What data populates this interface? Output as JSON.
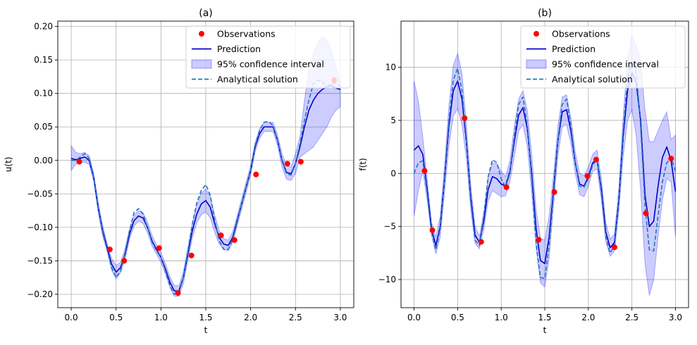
{
  "chart_data": [
    {
      "type": "line",
      "title": "(a)",
      "xlabel": "t",
      "ylabel": "u(t)",
      "xlim": [
        -0.15,
        3.15
      ],
      "ylim": [
        -0.22,
        0.208
      ],
      "xticks": [
        0.0,
        0.5,
        1.0,
        1.5,
        2.0,
        2.5,
        3.0
      ],
      "xtick_labels": [
        "0.0",
        "0.5",
        "1.0",
        "1.5",
        "2.0",
        "2.5",
        "3.0"
      ],
      "yticks": [
        -0.2,
        -0.15,
        -0.1,
        -0.05,
        0.0,
        0.05,
        0.1,
        0.15,
        0.2
      ],
      "ytick_labels": [
        "−0.20",
        "−0.15",
        "−0.10",
        "−0.05",
        "0.00",
        "0.05",
        "0.10",
        "0.15",
        "0.20"
      ],
      "grid": true,
      "legend_position": "top-right",
      "series": [
        {
          "name": "Observations",
          "kind": "scatter",
          "color": "#ff0000",
          "x": [
            0.09,
            0.43,
            0.59,
            0.98,
            1.19,
            1.34,
            1.67,
            1.82,
            2.06,
            2.41,
            2.56,
            2.93
          ],
          "y": [
            -0.002,
            -0.133,
            -0.15,
            -0.131,
            -0.198,
            -0.142,
            -0.112,
            -0.119,
            -0.021,
            -0.005,
            -0.002,
            0.12
          ]
        },
        {
          "name": "Prediction",
          "kind": "line",
          "color": "#0000cc",
          "x": [
            0.0,
            0.05,
            0.1,
            0.15,
            0.2,
            0.25,
            0.3,
            0.35,
            0.4,
            0.45,
            0.5,
            0.55,
            0.6,
            0.65,
            0.7,
            0.75,
            0.8,
            0.85,
            0.9,
            0.95,
            1.0,
            1.05,
            1.1,
            1.15,
            1.2,
            1.25,
            1.3,
            1.35,
            1.4,
            1.45,
            1.5,
            1.55,
            1.6,
            1.65,
            1.7,
            1.75,
            1.8,
            1.85,
            1.9,
            1.95,
            2.0,
            2.05,
            2.1,
            2.15,
            2.2,
            2.25,
            2.3,
            2.35,
            2.4,
            2.45,
            2.5,
            2.55,
            2.6,
            2.65,
            2.7,
            2.75,
            2.8,
            2.85,
            2.9,
            2.95,
            3.0
          ],
          "y": [
            0.003,
            0.001,
            0.003,
            0.005,
            0.0,
            -0.025,
            -0.07,
            -0.105,
            -0.13,
            -0.155,
            -0.167,
            -0.16,
            -0.14,
            -0.11,
            -0.09,
            -0.083,
            -0.086,
            -0.1,
            -0.12,
            -0.133,
            -0.145,
            -0.162,
            -0.182,
            -0.195,
            -0.195,
            -0.175,
            -0.14,
            -0.105,
            -0.08,
            -0.065,
            -0.06,
            -0.07,
            -0.095,
            -0.115,
            -0.125,
            -0.127,
            -0.115,
            -0.09,
            -0.065,
            -0.04,
            -0.015,
            0.02,
            0.04,
            0.05,
            0.05,
            0.05,
            0.03,
            0.0,
            -0.018,
            -0.02,
            -0.005,
            0.02,
            0.05,
            0.075,
            0.09,
            0.1,
            0.106,
            0.11,
            0.112,
            0.108,
            0.106
          ]
        },
        {
          "name": "95% confidence interval",
          "kind": "band",
          "color": "#0000ff",
          "x": [
            0.0,
            0.05,
            0.1,
            0.15,
            0.2,
            0.25,
            0.3,
            0.35,
            0.4,
            0.45,
            0.5,
            0.55,
            0.6,
            0.65,
            0.7,
            0.75,
            0.8,
            0.85,
            0.9,
            0.95,
            1.0,
            1.05,
            1.1,
            1.15,
            1.2,
            1.25,
            1.3,
            1.35,
            1.4,
            1.45,
            1.5,
            1.55,
            1.6,
            1.65,
            1.7,
            1.75,
            1.8,
            1.85,
            1.9,
            1.95,
            2.0,
            2.05,
            2.1,
            2.15,
            2.2,
            2.25,
            2.3,
            2.35,
            2.4,
            2.45,
            2.5,
            2.55,
            2.6,
            2.65,
            2.7,
            2.75,
            2.8,
            2.85,
            2.9,
            2.95,
            3.0
          ],
          "lower": [
            -0.015,
            -0.006,
            -0.002,
            -0.003,
            -0.006,
            -0.031,
            -0.078,
            -0.113,
            -0.136,
            -0.164,
            -0.177,
            -0.168,
            -0.148,
            -0.118,
            -0.098,
            -0.091,
            -0.094,
            -0.108,
            -0.128,
            -0.14,
            -0.152,
            -0.17,
            -0.19,
            -0.203,
            -0.203,
            -0.184,
            -0.15,
            -0.116,
            -0.093,
            -0.081,
            -0.077,
            -0.086,
            -0.108,
            -0.125,
            -0.133,
            -0.135,
            -0.123,
            -0.098,
            -0.073,
            -0.048,
            -0.022,
            0.013,
            0.033,
            0.043,
            0.043,
            0.043,
            0.022,
            -0.01,
            -0.028,
            -0.03,
            -0.02,
            0.005,
            0.01,
            0.015,
            0.02,
            0.03,
            0.04,
            0.05,
            0.065,
            0.075,
            0.08
          ],
          "upper": [
            0.022,
            0.012,
            0.01,
            0.012,
            0.007,
            -0.019,
            -0.062,
            -0.097,
            -0.124,
            -0.146,
            -0.157,
            -0.152,
            -0.132,
            -0.102,
            -0.082,
            -0.075,
            -0.078,
            -0.092,
            -0.112,
            -0.126,
            -0.138,
            -0.154,
            -0.174,
            -0.187,
            -0.187,
            -0.166,
            -0.13,
            -0.094,
            -0.067,
            -0.049,
            -0.043,
            -0.054,
            -0.082,
            -0.105,
            -0.117,
            -0.119,
            -0.107,
            -0.082,
            -0.057,
            -0.032,
            -0.008,
            0.027,
            0.047,
            0.057,
            0.057,
            0.057,
            0.038,
            0.01,
            -0.008,
            -0.01,
            0.01,
            0.035,
            0.09,
            0.135,
            0.16,
            0.175,
            0.185,
            0.18,
            0.165,
            0.14,
            0.115
          ]
        },
        {
          "name": "Analytical solution",
          "kind": "line",
          "dash": true,
          "color": "#1f77b4",
          "x": [
            0.0,
            0.05,
            0.1,
            0.15,
            0.2,
            0.25,
            0.3,
            0.35,
            0.4,
            0.45,
            0.5,
            0.55,
            0.6,
            0.65,
            0.7,
            0.75,
            0.8,
            0.85,
            0.9,
            0.95,
            1.0,
            1.05,
            1.1,
            1.15,
            1.2,
            1.25,
            1.3,
            1.35,
            1.4,
            1.45,
            1.5,
            1.55,
            1.6,
            1.65,
            1.7,
            1.75,
            1.8,
            1.85,
            1.9,
            1.95,
            2.0,
            2.05,
            2.1,
            2.15,
            2.2,
            2.25,
            2.3,
            2.35,
            2.4,
            2.45,
            2.5,
            2.55,
            2.6,
            2.65,
            2.7,
            2.75,
            2.8,
            2.85,
            2.9,
            2.95,
            3.0
          ],
          "y": [
            0.0,
            0.0,
            0.005,
            0.01,
            0.003,
            -0.025,
            -0.07,
            -0.107,
            -0.133,
            -0.16,
            -0.175,
            -0.165,
            -0.138,
            -0.105,
            -0.078,
            -0.072,
            -0.08,
            -0.1,
            -0.122,
            -0.135,
            -0.145,
            -0.165,
            -0.187,
            -0.2,
            -0.198,
            -0.175,
            -0.137,
            -0.095,
            -0.063,
            -0.045,
            -0.036,
            -0.052,
            -0.09,
            -0.12,
            -0.133,
            -0.133,
            -0.118,
            -0.092,
            -0.065,
            -0.04,
            -0.015,
            0.022,
            0.045,
            0.057,
            0.058,
            0.052,
            0.03,
            0.0,
            -0.02,
            -0.022,
            -0.005,
            0.025,
            0.06,
            0.09,
            0.115,
            0.12,
            0.117,
            0.11,
            0.115,
            0.115,
            0.11
          ]
        }
      ]
    },
    {
      "type": "line",
      "title": "(b)",
      "xlabel": "t",
      "ylabel": "f(t)",
      "xlim": [
        -0.15,
        3.15
      ],
      "ylim": [
        -12.65,
        14.35
      ],
      "xticks": [
        0.0,
        0.5,
        1.0,
        1.5,
        2.0,
        2.5,
        3.0
      ],
      "xtick_labels": [
        "0.0",
        "0.5",
        "1.0",
        "1.5",
        "2.0",
        "2.5",
        "3.0"
      ],
      "yticks": [
        -10,
        -5,
        0,
        5,
        10
      ],
      "ytick_labels": [
        "−10",
        "−5",
        "0",
        "5",
        "10"
      ],
      "grid": true,
      "legend_position": "top-right",
      "series": [
        {
          "name": "Observations",
          "kind": "scatter",
          "color": "#ff0000",
          "x": [
            0.12,
            0.21,
            0.58,
            0.77,
            1.06,
            1.43,
            1.61,
            1.99,
            2.09,
            2.3,
            2.66,
            2.95
          ],
          "y": [
            0.25,
            -5.35,
            5.2,
            -6.45,
            -1.3,
            -6.25,
            -1.75,
            -0.25,
            1.3,
            -6.95,
            -3.75,
            1.4
          ]
        },
        {
          "name": "Prediction",
          "kind": "line",
          "color": "#0000cc",
          "x": [
            0.0,
            0.05,
            0.1,
            0.15,
            0.2,
            0.25,
            0.3,
            0.35,
            0.4,
            0.45,
            0.5,
            0.55,
            0.6,
            0.65,
            0.7,
            0.75,
            0.8,
            0.85,
            0.9,
            0.95,
            1.0,
            1.05,
            1.1,
            1.15,
            1.2,
            1.25,
            1.3,
            1.35,
            1.4,
            1.45,
            1.5,
            1.55,
            1.6,
            1.65,
            1.7,
            1.75,
            1.8,
            1.85,
            1.9,
            1.95,
            2.0,
            2.05,
            2.1,
            2.15,
            2.2,
            2.25,
            2.3,
            2.35,
            2.4,
            2.45,
            2.5,
            2.55,
            2.6,
            2.65,
            2.7,
            2.75,
            2.8,
            2.85,
            2.9,
            2.95,
            3.0
          ],
          "y": [
            2.2,
            2.6,
            1.8,
            -1.5,
            -5.2,
            -6.8,
            -5.0,
            -0.5,
            4.5,
            7.8,
            8.7,
            7.0,
            3.0,
            -2.2,
            -5.8,
            -6.5,
            -4.5,
            -1.5,
            -0.3,
            -0.5,
            -1.0,
            -1.2,
            0.2,
            3.0,
            5.5,
            6.2,
            4.2,
            0.0,
            -5.2,
            -8.2,
            -8.5,
            -6.0,
            -1.6,
            3.0,
            5.8,
            6.0,
            4.0,
            1.0,
            -1.0,
            -1.2,
            -0.3,
            1.0,
            1.3,
            -1.5,
            -5.5,
            -7.0,
            -6.5,
            -2.5,
            3.5,
            7.8,
            9.5,
            8.5,
            5.0,
            -2.0,
            -5.0,
            -4.5,
            -1.2,
            1.5,
            2.5,
            1.2,
            -1.7
          ]
        },
        {
          "name": "95% confidence interval",
          "kind": "band",
          "color": "#0000ff",
          "x": [
            0.0,
            0.05,
            0.1,
            0.15,
            0.2,
            0.25,
            0.3,
            0.35,
            0.4,
            0.45,
            0.5,
            0.55,
            0.6,
            0.65,
            0.7,
            0.75,
            0.8,
            0.85,
            0.9,
            0.95,
            1.0,
            1.05,
            1.1,
            1.15,
            1.2,
            1.25,
            1.3,
            1.35,
            1.4,
            1.45,
            1.5,
            1.55,
            1.6,
            1.65,
            1.7,
            1.75,
            1.8,
            1.85,
            1.9,
            1.95,
            2.0,
            2.05,
            2.1,
            2.15,
            2.2,
            2.25,
            2.3,
            2.35,
            2.4,
            2.45,
            2.5,
            2.55,
            2.6,
            2.65,
            2.7,
            2.75,
            2.8,
            2.85,
            2.9,
            2.95,
            3.0
          ],
          "lower": [
            -4.0,
            -1.6,
            0.2,
            -2.5,
            -5.8,
            -7.6,
            -6.0,
            -1.8,
            2.6,
            5.4,
            6.1,
            4.6,
            1.4,
            -3.4,
            -6.6,
            -7.1,
            -5.3,
            -2.6,
            -1.6,
            -1.9,
            -2.2,
            -2.1,
            -0.8,
            1.6,
            4.0,
            4.6,
            2.5,
            -1.8,
            -7.0,
            -10.3,
            -10.7,
            -8.0,
            -3.0,
            1.6,
            4.4,
            4.6,
            2.8,
            0.0,
            -2.0,
            -2.2,
            -1.2,
            0.2,
            0.4,
            -2.5,
            -6.4,
            -7.8,
            -7.3,
            -3.6,
            1.6,
            5.0,
            6.0,
            3.5,
            -1.5,
            -8.5,
            -11.5,
            -10.0,
            -6.0,
            -2.5,
            -0.5,
            -0.8,
            -6.0
          ],
          "upper": [
            8.7,
            6.8,
            3.4,
            -0.5,
            -4.6,
            -6.0,
            -4.0,
            0.8,
            6.4,
            10.2,
            11.3,
            9.4,
            4.6,
            -1.0,
            -5.0,
            -5.9,
            -3.7,
            -0.4,
            1.0,
            0.9,
            0.2,
            -0.3,
            1.2,
            4.4,
            7.0,
            7.8,
            5.9,
            1.8,
            -3.4,
            -6.1,
            -6.3,
            -4.0,
            -0.2,
            4.4,
            7.2,
            7.4,
            5.2,
            2.0,
            0.0,
            -0.2,
            0.6,
            1.8,
            2.2,
            -0.5,
            -4.6,
            -6.2,
            -5.7,
            -1.4,
            5.4,
            10.6,
            13.0,
            12.0,
            10.5,
            6.0,
            3.0,
            3.0,
            4.0,
            5.0,
            5.8,
            3.2,
            3.6
          ]
        },
        {
          "name": "Analytical solution",
          "kind": "line",
          "dash": true,
          "color": "#1f77b4",
          "x": [
            0.0,
            0.05,
            0.1,
            0.15,
            0.2,
            0.25,
            0.3,
            0.35,
            0.4,
            0.45,
            0.5,
            0.55,
            0.6,
            0.65,
            0.7,
            0.75,
            0.8,
            0.85,
            0.9,
            0.95,
            1.0,
            1.05,
            1.1,
            1.15,
            1.2,
            1.25,
            1.3,
            1.35,
            1.4,
            1.45,
            1.5,
            1.55,
            1.6,
            1.65,
            1.7,
            1.75,
            1.8,
            1.85,
            1.9,
            1.95,
            2.0,
            2.05,
            2.1,
            2.15,
            2.2,
            2.25,
            2.3,
            2.35,
            2.4,
            2.45,
            2.5,
            2.55,
            2.6,
            2.65,
            2.7,
            2.75,
            2.8,
            2.85,
            2.9,
            2.95,
            3.0
          ],
          "y": [
            0.0,
            1.0,
            1.2,
            -1.8,
            -5.5,
            -7.2,
            -5.2,
            -0.5,
            5.0,
            8.8,
            9.9,
            7.8,
            3.2,
            -2.5,
            -6.3,
            -6.8,
            -4.0,
            -0.3,
            1.3,
            1.0,
            -0.5,
            -1.3,
            0.0,
            3.5,
            6.5,
            7.2,
            4.5,
            -0.5,
            -6.5,
            -9.8,
            -9.9,
            -6.8,
            -2.0,
            3.0,
            6.5,
            7.0,
            4.5,
            1.0,
            -1.2,
            -1.3,
            -0.5,
            0.8,
            1.3,
            -1.8,
            -6.0,
            -7.5,
            -6.8,
            -2.5,
            4.0,
            9.0,
            10.6,
            9.5,
            4.5,
            -3.0,
            -7.2,
            -7.3,
            -4.0,
            -0.8,
            1.0,
            1.5,
            0.2
          ]
        }
      ]
    }
  ]
}
